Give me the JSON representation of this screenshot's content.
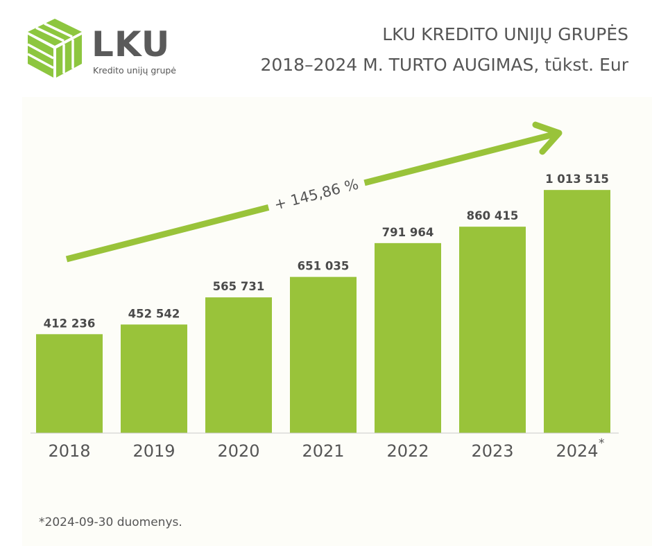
{
  "logo": {
    "wordmark": "LKU",
    "tagline": "Kredito unijų grupė",
    "color": "#8dc63f"
  },
  "title": {
    "line1": "LKU KREDITO UNIJŲ GRUPĖS",
    "line2": "2018–2024 M. TURTO AUGIMAS, tūkst. Eur"
  },
  "chart_data": {
    "type": "bar",
    "categories": [
      "2018",
      "2019",
      "2020",
      "2021",
      "2022",
      "2023",
      "2024"
    ],
    "values": [
      412236,
      452542,
      565731,
      651035,
      791964,
      860415,
      1013515
    ],
    "value_labels": [
      "412 236",
      "452 542",
      "565 731",
      "651 035",
      "791 964",
      "860 415",
      "1 013 515"
    ],
    "category_marks": [
      "",
      "",
      "",
      "",
      "",
      "",
      "*"
    ],
    "ylim": [
      0,
      1040000
    ],
    "bar_color": "#99c33a",
    "trend_annotation": "+ 145,86 %",
    "grid": false,
    "legend": "none"
  },
  "footnote": "*2024-09-30 duomenys."
}
